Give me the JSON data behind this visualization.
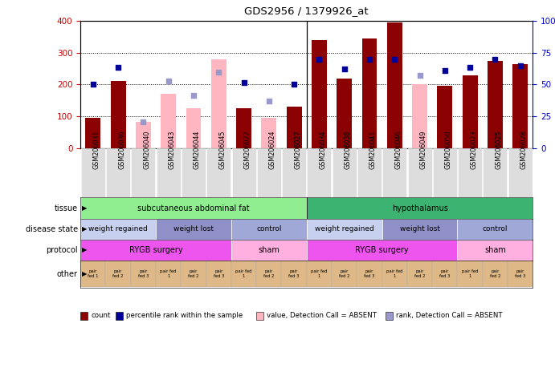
{
  "title": "GDS2956 / 1379926_at",
  "samples": [
    "GSM206031",
    "GSM206036",
    "GSM206040",
    "GSM206043",
    "GSM206044",
    "GSM206045",
    "GSM206022",
    "GSM206024",
    "GSM206027",
    "GSM206034",
    "GSM206038",
    "GSM206041",
    "GSM206046",
    "GSM206049",
    "GSM206050",
    "GSM206023",
    "GSM206025",
    "GSM206028"
  ],
  "count_values": [
    95,
    210,
    null,
    null,
    null,
    null,
    125,
    null,
    130,
    340,
    220,
    345,
    395,
    null,
    195,
    230,
    275,
    265
  ],
  "absent_values": [
    null,
    null,
    82,
    172,
    125,
    280,
    null,
    95,
    null,
    null,
    null,
    null,
    null,
    200,
    null,
    null,
    null,
    null
  ],
  "rank_present_left": [
    200,
    255,
    null,
    null,
    null,
    null,
    205,
    null,
    200,
    280,
    250,
    280,
    280,
    null,
    245,
    255,
    280,
    260
  ],
  "rank_absent_left": [
    null,
    null,
    83,
    210,
    165,
    240,
    null,
    148,
    null,
    null,
    null,
    null,
    null,
    230,
    null,
    null,
    null,
    null
  ],
  "bar_color_present": "#8B0000",
  "bar_color_absent": "#FFB6C1",
  "dot_color_present": "#000099",
  "dot_color_absent": "#9999CC",
  "tissue_groups": [
    {
      "label": "subcutaneous abdominal fat",
      "start": 0,
      "end": 9,
      "color": "#90EE90"
    },
    {
      "label": "hypothalamus",
      "start": 9,
      "end": 18,
      "color": "#3CB371"
    }
  ],
  "disease_groups": [
    {
      "label": "weight regained",
      "start": 0,
      "end": 3,
      "color": "#C8D0F0"
    },
    {
      "label": "weight lost",
      "start": 3,
      "end": 6,
      "color": "#9090C8"
    },
    {
      "label": "control",
      "start": 6,
      "end": 9,
      "color": "#A0A8D8"
    },
    {
      "label": "weight regained",
      "start": 9,
      "end": 12,
      "color": "#C8D0F0"
    },
    {
      "label": "weight lost",
      "start": 12,
      "end": 15,
      "color": "#9090C8"
    },
    {
      "label": "control",
      "start": 15,
      "end": 18,
      "color": "#A0A8D8"
    }
  ],
  "protocol_groups": [
    {
      "label": "RYGB surgery",
      "start": 0,
      "end": 6,
      "color": "#EE55EE"
    },
    {
      "label": "sham",
      "start": 6,
      "end": 9,
      "color": "#FFB0E0"
    },
    {
      "label": "RYGB surgery",
      "start": 9,
      "end": 15,
      "color": "#EE55EE"
    },
    {
      "label": "sham",
      "start": 15,
      "end": 18,
      "color": "#FFB0E0"
    }
  ],
  "other_labels": [
    "pair\nfed 1",
    "pair\nfed 2",
    "pair\nfed 3",
    "pair fed\n1",
    "pair\nfed 2",
    "pair\nfed 3",
    "pair fed\n1",
    "pair\nfed 2",
    "pair\nfed 3",
    "pair fed\n1",
    "pair\nfed 2",
    "pair\nfed 3",
    "pair fed\n1",
    "pair\nfed 2",
    "pair\nfed 3",
    "pair fed\n1",
    "pair\nfed 2",
    "pair\nfed 3"
  ],
  "other_color": "#DEB887",
  "left_labels": [
    "tissue",
    "disease state",
    "protocol",
    "other"
  ],
  "legend": [
    {
      "label": "count",
      "color": "#8B0000"
    },
    {
      "label": "percentile rank within the sample",
      "color": "#000099"
    },
    {
      "label": "value, Detection Call = ABSENT",
      "color": "#FFB6C1"
    },
    {
      "label": "rank, Detection Call = ABSENT",
      "color": "#9999CC"
    }
  ]
}
